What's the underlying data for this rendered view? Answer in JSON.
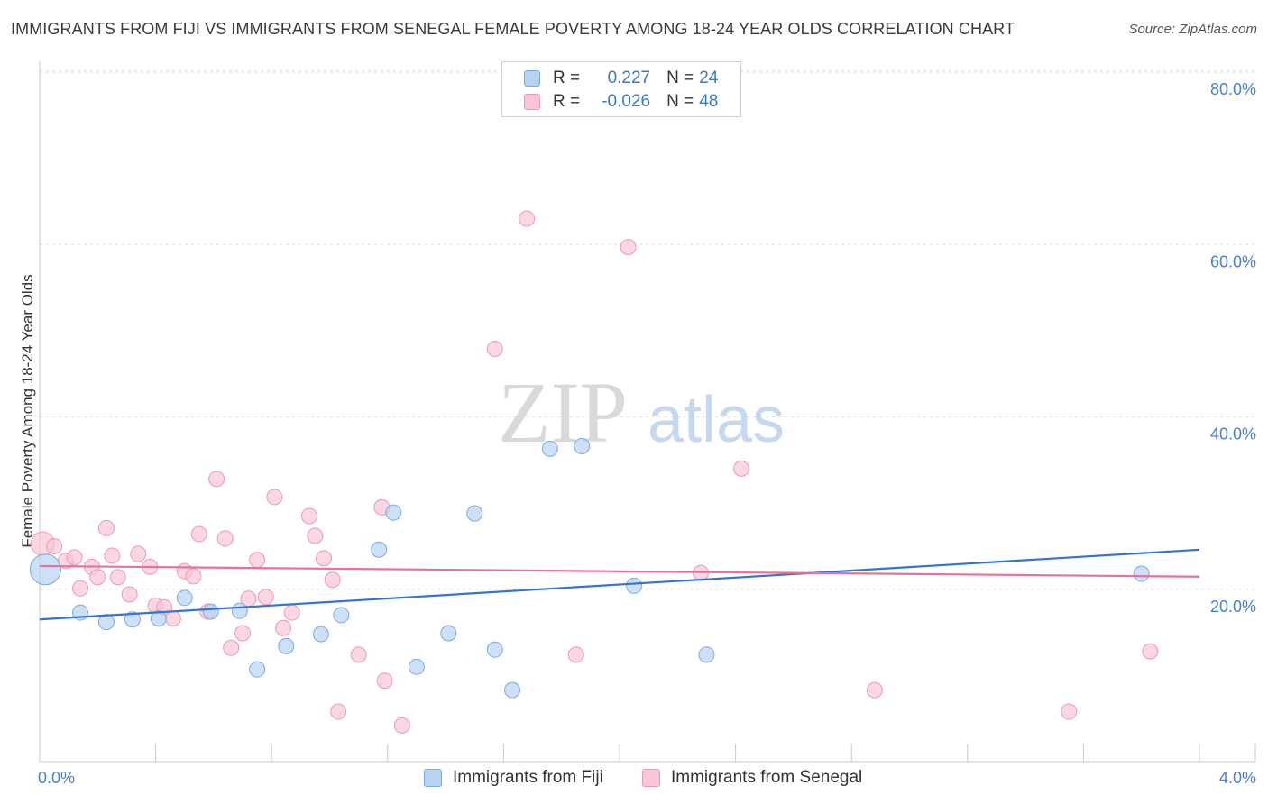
{
  "title": "IMMIGRANTS FROM FIJI VS IMMIGRANTS FROM SENEGAL FEMALE POVERTY AMONG 18-24 YEAR OLDS CORRELATION CHART",
  "source": "Source: ZipAtlas.com",
  "watermark": {
    "zip": "ZIP",
    "atlas": "atlas"
  },
  "legend": {
    "rows": [
      {
        "r_label": "R =",
        "r_value": "0.227",
        "n_label": "N =",
        "n_value": "24"
      },
      {
        "r_label": "R =",
        "r_value": "-0.026",
        "n_label": "N =",
        "n_value": "48"
      }
    ]
  },
  "colors": {
    "fiji_fill": "#b7d3f2",
    "fiji_stroke": "#7eaae0",
    "fiji_line": "#3374d0",
    "senegal_fill": "#f8c6d4",
    "senegal_stroke": "#ec9ab3",
    "senegal_line": "#e8719b",
    "tick_label": "#4a7fcf",
    "grid": "#dddddd"
  },
  "chart_data": {
    "type": "scatter",
    "ylabel": "Female Poverty Among 18-24 Year Olds",
    "xlabel": "",
    "x_unit": "%",
    "y_unit": "%",
    "xlim": [
      0,
      4.2
    ],
    "ylim": [
      0,
      80
    ],
    "x_tick_labels": [
      "0.0%",
      "4.0%"
    ],
    "y_tick_labels": [
      "20.0%",
      "40.0%",
      "60.0%",
      "80.0%"
    ],
    "y_ticks": [
      20,
      40,
      60,
      80
    ],
    "grid": "horizontal dashed",
    "series": [
      {
        "name": "Immigrants from Fiji",
        "trend": {
          "x": [
            0,
            4.2
          ],
          "y": [
            16.5,
            25.0
          ]
        },
        "points": [
          {
            "x": 0.02,
            "y": 22.3,
            "size": "large"
          },
          {
            "x": 0.14,
            "y": 17.3
          },
          {
            "x": 0.23,
            "y": 16.2
          },
          {
            "x": 0.32,
            "y": 16.5
          },
          {
            "x": 0.41,
            "y": 16.6
          },
          {
            "x": 0.5,
            "y": 19.0
          },
          {
            "x": 0.59,
            "y": 17.4
          },
          {
            "x": 0.69,
            "y": 17.5
          },
          {
            "x": 0.75,
            "y": 10.7
          },
          {
            "x": 0.85,
            "y": 13.4
          },
          {
            "x": 0.97,
            "y": 14.8
          },
          {
            "x": 1.04,
            "y": 17.0
          },
          {
            "x": 1.17,
            "y": 24.6
          },
          {
            "x": 1.22,
            "y": 28.9
          },
          {
            "x": 1.3,
            "y": 11.0
          },
          {
            "x": 1.41,
            "y": 14.9
          },
          {
            "x": 1.5,
            "y": 28.8
          },
          {
            "x": 1.57,
            "y": 13.0
          },
          {
            "x": 1.63,
            "y": 8.3
          },
          {
            "x": 1.76,
            "y": 36.3
          },
          {
            "x": 1.87,
            "y": 36.6
          },
          {
            "x": 2.05,
            "y": 20.4
          },
          {
            "x": 2.3,
            "y": 12.4
          },
          {
            "x": 3.8,
            "y": 21.8
          }
        ]
      },
      {
        "name": "Immigrants from Senegal",
        "trend": {
          "x": [
            0,
            4.2
          ],
          "y": [
            22.7,
            21.4
          ]
        },
        "points": [
          {
            "x": 0.01,
            "y": 25.3,
            "size": "medium"
          },
          {
            "x": 0.05,
            "y": 25.0
          },
          {
            "x": 0.09,
            "y": 23.3
          },
          {
            "x": 0.12,
            "y": 23.7
          },
          {
            "x": 0.14,
            "y": 20.1
          },
          {
            "x": 0.18,
            "y": 22.6
          },
          {
            "x": 0.2,
            "y": 21.4
          },
          {
            "x": 0.23,
            "y": 27.1
          },
          {
            "x": 0.25,
            "y": 23.9
          },
          {
            "x": 0.27,
            "y": 21.4
          },
          {
            "x": 0.31,
            "y": 19.4
          },
          {
            "x": 0.34,
            "y": 24.1
          },
          {
            "x": 0.38,
            "y": 22.6
          },
          {
            "x": 0.4,
            "y": 18.1
          },
          {
            "x": 0.43,
            "y": 17.9
          },
          {
            "x": 0.46,
            "y": 16.6
          },
          {
            "x": 0.5,
            "y": 22.1
          },
          {
            "x": 0.53,
            "y": 21.5
          },
          {
            "x": 0.55,
            "y": 26.4
          },
          {
            "x": 0.58,
            "y": 17.4
          },
          {
            "x": 0.61,
            "y": 32.8
          },
          {
            "x": 0.64,
            "y": 25.9
          },
          {
            "x": 0.66,
            "y": 13.2
          },
          {
            "x": 0.7,
            "y": 14.9
          },
          {
            "x": 0.72,
            "y": 18.9
          },
          {
            "x": 0.75,
            "y": 23.4
          },
          {
            "x": 0.78,
            "y": 19.1
          },
          {
            "x": 0.81,
            "y": 30.7
          },
          {
            "x": 0.84,
            "y": 15.5
          },
          {
            "x": 0.87,
            "y": 17.3
          },
          {
            "x": 0.93,
            "y": 28.5
          },
          {
            "x": 0.95,
            "y": 26.2
          },
          {
            "x": 0.98,
            "y": 23.6
          },
          {
            "x": 1.01,
            "y": 21.1
          },
          {
            "x": 1.03,
            "y": 5.8
          },
          {
            "x": 1.1,
            "y": 12.4
          },
          {
            "x": 1.18,
            "y": 29.5
          },
          {
            "x": 1.19,
            "y": 9.4
          },
          {
            "x": 1.25,
            "y": 4.2
          },
          {
            "x": 1.57,
            "y": 47.9
          },
          {
            "x": 1.68,
            "y": 63.0
          },
          {
            "x": 1.85,
            "y": 12.4
          },
          {
            "x": 2.03,
            "y": 59.7
          },
          {
            "x": 2.28,
            "y": 21.9
          },
          {
            "x": 2.42,
            "y": 34.0
          },
          {
            "x": 2.88,
            "y": 8.3
          },
          {
            "x": 3.55,
            "y": 5.8
          },
          {
            "x": 3.83,
            "y": 12.8
          }
        ]
      }
    ]
  }
}
